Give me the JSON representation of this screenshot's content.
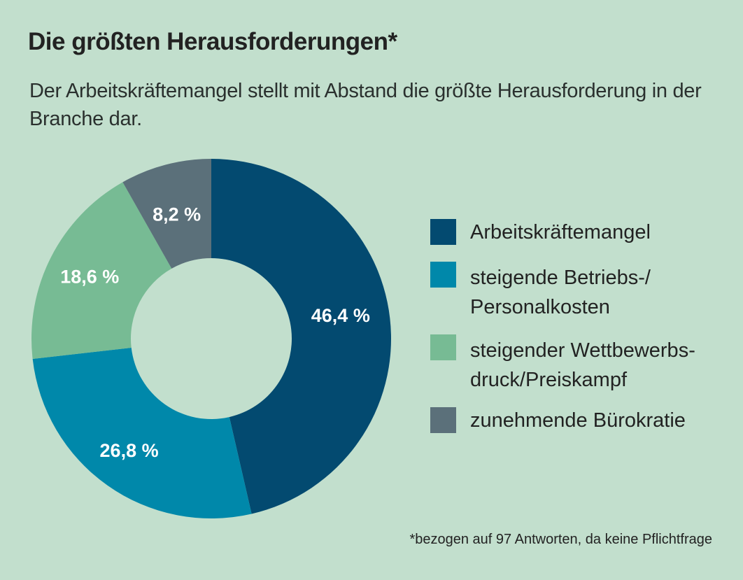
{
  "chart_data": {
    "type": "pie",
    "variant": "donut",
    "title": "Die größten Herausforderungen*",
    "subtitle": "Der Arbeitskräftemangel stellt mit Abstand die größte Herausforderung in der Branche dar.",
    "categories": [
      "Arbeitskräftemangel",
      "steigende Betriebs-/Personalkosten",
      "steigender Wettbewerbsdruck/Preiskampf",
      "zunehmende Bürokratie"
    ],
    "values": [
      46.4,
      26.8,
      18.6,
      8.2
    ],
    "value_labels": [
      "46,4 %",
      "26,8 %",
      "18,6 %",
      "8,2 %"
    ],
    "colors": [
      "#034a70",
      "#0088aa",
      "#77bb94",
      "#5b707a"
    ],
    "legend_position": "right",
    "start_angle": "top, clockwise",
    "footnote": "*bezogen auf 97 Antworten, da keine Pflichtfrage"
  },
  "legend": [
    {
      "lines": [
        "Arbeitskräftemangel"
      ]
    },
    {
      "lines": [
        "steigende Betriebs-/",
        "Personalkosten"
      ]
    },
    {
      "lines": [
        "steigender Wettbewerbs-",
        "druck/Preiskampf"
      ]
    },
    {
      "lines": [
        "zunehmende Bürokratie"
      ]
    }
  ]
}
